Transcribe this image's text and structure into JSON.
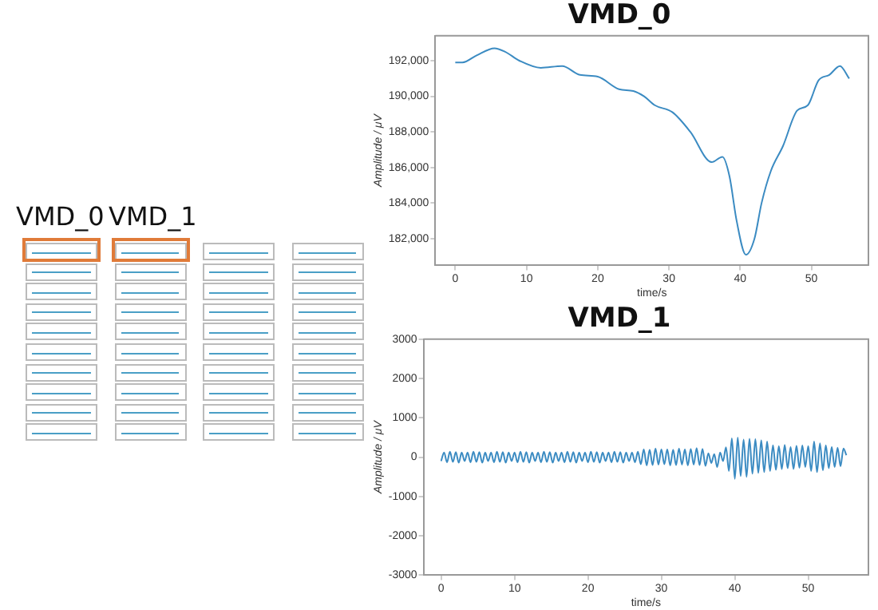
{
  "chart_data": [
    {
      "type": "line",
      "title": "VMD_0",
      "xlabel": "time/s",
      "ylabel": "Amplitude / μV",
      "xlim": [
        -2.8,
        58
      ],
      "xticks": [
        0,
        10,
        20,
        30,
        40,
        50
      ],
      "ylim": [
        180500,
        193400
      ],
      "yticks": [
        {
          "value": 182000,
          "label": "182,000"
        },
        {
          "value": 184000,
          "label": "184,000"
        },
        {
          "value": 186000,
          "label": "186,000"
        },
        {
          "value": 188000,
          "label": "188,000"
        },
        {
          "value": 190000,
          "label": "190,000"
        },
        {
          "value": 192000,
          "label": "192,000"
        }
      ],
      "grid": false,
      "legend": false,
      "series": [
        {
          "color": "#3b8bc2",
          "x": [
            0,
            1,
            3,
            5.5,
            7,
            9,
            12,
            15,
            17.5,
            20,
            23,
            25,
            26.5,
            28,
            30.5,
            33,
            36,
            37.5,
            38.5,
            39.5,
            40.8,
            42,
            43,
            44.3,
            46,
            48,
            49.5,
            51,
            52.5,
            54,
            55.3
          ],
          "values": [
            191900,
            191900,
            192300,
            192700,
            192500,
            192000,
            191600,
            191700,
            191200,
            191100,
            190400,
            190300,
            190000,
            189500,
            189100,
            188000,
            186300,
            186600,
            185500,
            183000,
            181100,
            182000,
            184000,
            185800,
            187200,
            189200,
            189500,
            190900,
            191200,
            191700,
            191000
          ]
        }
      ]
    },
    {
      "type": "line",
      "title": "VMD_1",
      "xlabel": "time/s",
      "ylabel": "Amplitude / μV",
      "xlim": [
        -2.4,
        58.2
      ],
      "xticks": [
        0,
        10,
        20,
        30,
        40,
        50
      ],
      "ylim": [
        -3000,
        3000
      ],
      "yticks": [
        -3000,
        -2000,
        -1000,
        0,
        1000,
        2000,
        3000
      ],
      "grid": false,
      "legend": false,
      "series": [
        {
          "color": "#3b8bc2",
          "x": [
            0,
            0.4,
            0.8,
            1.2,
            1.6,
            2,
            2.4,
            2.8,
            3.2,
            3.6,
            4,
            4.4,
            4.8,
            5.2,
            5.6,
            6,
            6.4,
            6.8,
            7.2,
            7.6,
            8,
            8.4,
            8.8,
            9.2,
            9.6,
            10,
            10.4,
            10.8,
            11.2,
            11.6,
            12,
            12.4,
            12.8,
            13.2,
            13.6,
            14,
            14.4,
            14.8,
            15.2,
            15.6,
            16,
            16.4,
            16.8,
            17.2,
            17.6,
            18,
            18.4,
            18.8,
            19.2,
            19.6,
            20,
            20.4,
            20.8,
            21.2,
            21.6,
            22,
            22.4,
            22.8,
            23.2,
            23.6,
            24,
            24.4,
            24.8,
            25.2,
            25.6,
            26,
            26.4,
            26.8,
            27.2,
            27.6,
            28,
            28.4,
            28.8,
            29.2,
            29.6,
            30,
            30.4,
            30.8,
            31.2,
            31.6,
            32,
            32.4,
            32.8,
            33.2,
            33.6,
            34,
            34.4,
            34.8,
            35.2,
            35.6,
            36,
            36.4,
            36.8,
            37.2,
            37.6,
            38,
            38.4,
            38.8,
            39.2,
            39.6,
            40,
            40.4,
            40.8,
            41.2,
            41.6,
            42,
            42.4,
            42.8,
            43.2,
            43.6,
            44,
            44.4,
            44.8,
            45.2,
            45.6,
            46,
            46.4,
            46.8,
            47.2,
            47.6,
            48,
            48.4,
            48.8,
            49.2,
            49.6,
            50,
            50.4,
            50.8,
            51.2,
            51.6,
            52,
            52.4,
            52.8,
            53.2,
            53.6,
            54,
            54.4,
            54.8,
            55.2
          ],
          "values": [
            -100,
            120,
            -130,
            140,
            -120,
            130,
            -140,
            120,
            -100,
            120,
            -130,
            140,
            -120,
            130,
            -140,
            120,
            -100,
            120,
            -130,
            140,
            -120,
            130,
            -140,
            120,
            -100,
            120,
            -130,
            140,
            -120,
            130,
            -140,
            120,
            -100,
            120,
            -130,
            140,
            -120,
            130,
            -140,
            120,
            -100,
            120,
            -130,
            140,
            -120,
            130,
            -140,
            120,
            -100,
            120,
            -130,
            140,
            -120,
            130,
            -140,
            120,
            -100,
            120,
            -130,
            140,
            -120,
            130,
            -140,
            120,
            -100,
            120,
            -130,
            140,
            -180,
            200,
            -210,
            190,
            -200,
            220,
            -190,
            200,
            -180,
            200,
            -210,
            190,
            -200,
            220,
            -190,
            200,
            -210,
            210,
            -190,
            230,
            -200,
            210,
            -220,
            100,
            -150,
            80,
            -250,
            120,
            -100,
            250,
            -350,
            480,
            -550,
            500,
            -480,
            450,
            -500,
            470,
            -420,
            460,
            -400,
            430,
            -380,
            400,
            -350,
            300,
            -320,
            280,
            -300,
            310,
            -280,
            260,
            -300,
            290,
            -270,
            300,
            -250,
            280,
            -350,
            400,
            -380,
            350,
            -330,
            300,
            -280,
            260,
            -250,
            240,
            -230,
            220,
            50
          ]
        }
      ]
    },
    {
      "type": "other",
      "annotations": [
        "VMD_0",
        "VMD_1"
      ]
    }
  ]
}
